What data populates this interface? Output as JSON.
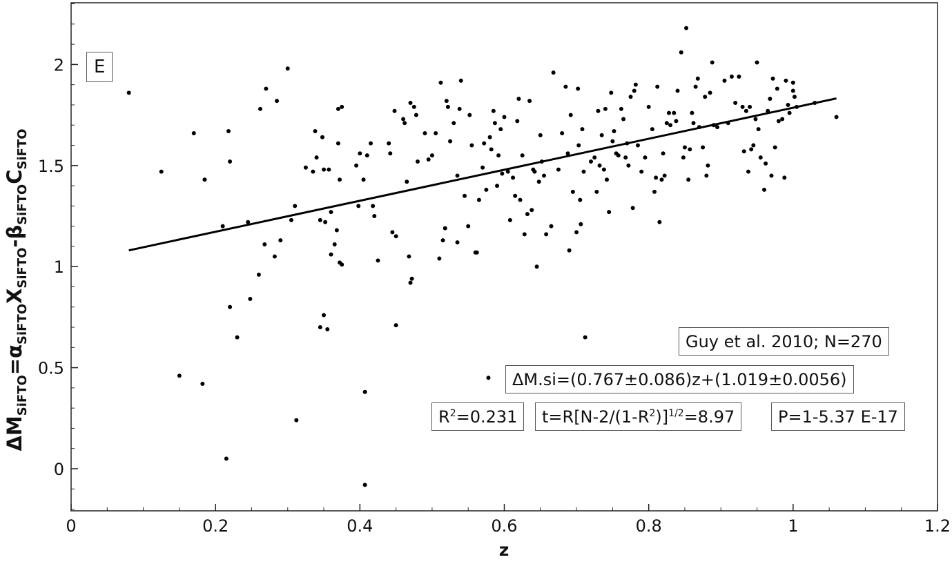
{
  "panel_label": "E",
  "legend": {
    "source": "Guy et al. 2010; N=270",
    "fit": "ΔM.si=(0.767±0.086)z+(1.019±0.0056)",
    "r2_prefix": "R",
    "r2_sup": "2",
    "r2_value": "=0.231",
    "t_a": "t=R[N-2/(1-R",
    "t_b": "2",
    "t_c": ")]",
    "t_d": "1/2",
    "t_e": "=8.97",
    "p": "P=1-5.37 E-17"
  },
  "chart_data": {
    "type": "scatter",
    "xlabel": "z",
    "ylabel": {
      "a": "ΔM",
      "a_sub": "SiFTO",
      "b": "=α",
      "b_sub": "SiFTO",
      "c": "X",
      "c_sub": "SiFTO",
      "d": "-β",
      "d_sub": "SiFTO",
      "e": "C",
      "e_sub": "SiFTO"
    },
    "xlim": [
      0,
      1.2
    ],
    "ylim": [
      -0.2,
      2.3
    ],
    "xticks": [
      0,
      0.2,
      0.4,
      0.6,
      0.8,
      1,
      1.2
    ],
    "yticks": [
      0,
      0.5,
      1,
      1.5,
      2
    ],
    "xtick_labels": [
      "0",
      "0.2",
      "0.4",
      "0.6",
      "0.8",
      "1",
      "1.2"
    ],
    "ytick_labels": [
      "0",
      "0.5",
      "1",
      "1.5",
      "2"
    ],
    "fit_line": {
      "slope": 0.767,
      "intercept": 1.019,
      "x_range": [
        0.08,
        1.06
      ]
    },
    "points": [
      [
        0.08,
        1.86
      ],
      [
        0.125,
        1.47
      ],
      [
        0.15,
        0.46
      ],
      [
        0.17,
        1.66
      ],
      [
        0.182,
        0.42
      ],
      [
        0.185,
        1.43
      ],
      [
        0.21,
        1.2
      ],
      [
        0.215,
        0.05
      ],
      [
        0.218,
        1.67
      ],
      [
        0.22,
        1.52
      ],
      [
        0.22,
        0.8
      ],
      [
        0.23,
        0.65
      ],
      [
        0.245,
        1.22
      ],
      [
        0.248,
        0.84
      ],
      [
        0.26,
        0.96
      ],
      [
        0.262,
        1.78
      ],
      [
        0.268,
        1.11
      ],
      [
        0.27,
        1.88
      ],
      [
        0.282,
        1.05
      ],
      [
        0.285,
        1.82
      ],
      [
        0.29,
        1.13
      ],
      [
        0.3,
        1.98
      ],
      [
        0.305,
        1.23
      ],
      [
        0.31,
        1.3
      ],
      [
        0.312,
        0.24
      ],
      [
        0.325,
        1.49
      ],
      [
        0.335,
        1.47
      ],
      [
        0.338,
        1.67
      ],
      [
        0.34,
        1.54
      ],
      [
        0.345,
        0.7
      ],
      [
        0.345,
        1.23
      ],
      [
        0.348,
        1.64
      ],
      [
        0.35,
        0.76
      ],
      [
        0.35,
        1.48
      ],
      [
        0.352,
        1.22
      ],
      [
        0.355,
        0.69
      ],
      [
        0.357,
        1.48
      ],
      [
        0.36,
        1.27
      ],
      [
        0.36,
        1.06
      ],
      [
        0.365,
        1.11
      ],
      [
        0.368,
        1.18
      ],
      [
        0.37,
        1.78
      ],
      [
        0.37,
        1.61
      ],
      [
        0.372,
        1.43
      ],
      [
        0.372,
        1.02
      ],
      [
        0.375,
        1.79
      ],
      [
        0.375,
        1.01
      ],
      [
        0.395,
        1.5
      ],
      [
        0.398,
        1.3
      ],
      [
        0.4,
        1.56
      ],
      [
        0.405,
        1.43
      ],
      [
        0.407,
        0.38
      ],
      [
        0.407,
        -0.08
      ],
      [
        0.41,
        1.55
      ],
      [
        0.415,
        1.61
      ],
      [
        0.418,
        1.3
      ],
      [
        0.42,
        1.25
      ],
      [
        0.425,
        1.03
      ],
      [
        0.44,
        1.61
      ],
      [
        0.442,
        1.56
      ],
      [
        0.445,
        1.17
      ],
      [
        0.448,
        1.77
      ],
      [
        0.45,
        1.15
      ],
      [
        0.45,
        0.71
      ],
      [
        0.46,
        1.73
      ],
      [
        0.462,
        1.71
      ],
      [
        0.465,
        1.42
      ],
      [
        0.468,
        1.05
      ],
      [
        0.47,
        1.81
      ],
      [
        0.47,
        0.92
      ],
      [
        0.472,
        0.94
      ],
      [
        0.475,
        1.79
      ],
      [
        0.478,
        1.75
      ],
      [
        0.48,
        1.52
      ],
      [
        0.49,
        1.66
      ],
      [
        0.495,
        1.53
      ],
      [
        0.5,
        1.55
      ],
      [
        0.505,
        1.66
      ],
      [
        0.51,
        1.04
      ],
      [
        0.512,
        1.91
      ],
      [
        0.515,
        1.13
      ],
      [
        0.518,
        1.19
      ],
      [
        0.52,
        1.82
      ],
      [
        0.522,
        1.79
      ],
      [
        0.525,
        1.62
      ],
      [
        0.53,
        1.71
      ],
      [
        0.535,
        1.45
      ],
      [
        0.535,
        1.12
      ],
      [
        0.538,
        1.78
      ],
      [
        0.54,
        1.92
      ],
      [
        0.545,
        1.35
      ],
      [
        0.55,
        1.2
      ],
      [
        0.552,
        1.75
      ],
      [
        0.555,
        1.6
      ],
      [
        0.56,
        1.07
      ],
      [
        0.562,
        1.07
      ],
      [
        0.565,
        1.33
      ],
      [
        0.57,
        1.49
      ],
      [
        0.572,
        1.61
      ],
      [
        0.575,
        1.38
      ],
      [
        0.578,
        0.45
      ],
      [
        0.58,
        1.64
      ],
      [
        0.582,
        1.58
      ],
      [
        0.585,
        1.77
      ],
      [
        0.587,
        1.71
      ],
      [
        0.59,
        1.4
      ],
      [
        0.592,
        1.55
      ],
      [
        0.595,
        1.68
      ],
      [
        0.597,
        1.46
      ],
      [
        0.6,
        1.74
      ],
      [
        0.605,
        1.47
      ],
      [
        0.608,
        1.23
      ],
      [
        0.612,
        1.44
      ],
      [
        0.615,
        1.35
      ],
      [
        0.618,
        1.72
      ],
      [
        0.62,
        1.83
      ],
      [
        0.622,
        1.33
      ],
      [
        0.625,
        1.55
      ],
      [
        0.628,
        1.16
      ],
      [
        0.632,
        1.26
      ],
      [
        0.635,
        1.82
      ],
      [
        0.638,
        1.28
      ],
      [
        0.64,
        1.48
      ],
      [
        0.642,
        1.47
      ],
      [
        0.645,
        1.0
      ],
      [
        0.648,
        1.42
      ],
      [
        0.65,
        1.65
      ],
      [
        0.652,
        1.52
      ],
      [
        0.655,
        1.45
      ],
      [
        0.658,
        1.16
      ],
      [
        0.665,
        1.2
      ],
      [
        0.668,
        1.96
      ],
      [
        0.675,
        1.48
      ],
      [
        0.68,
        1.66
      ],
      [
        0.685,
        1.89
      ],
      [
        0.688,
        1.56
      ],
      [
        0.69,
        1.08
      ],
      [
        0.692,
        1.75
      ],
      [
        0.695,
        1.37
      ],
      [
        0.7,
        1.17
      ],
      [
        0.702,
        1.88
      ],
      [
        0.703,
        1.6
      ],
      [
        0.705,
        1.33
      ],
      [
        0.706,
        1.21
      ],
      [
        0.708,
        1.68
      ],
      [
        0.71,
        1.47
      ],
      [
        0.712,
        0.65
      ],
      [
        0.72,
        1.52
      ],
      [
        0.725,
        1.54
      ],
      [
        0.728,
        1.37
      ],
      [
        0.73,
        1.77
      ],
      [
        0.732,
        1.5
      ],
      [
        0.735,
        1.65
      ],
      [
        0.738,
        1.48
      ],
      [
        0.74,
        1.78
      ],
      [
        0.742,
        1.43
      ],
      [
        0.745,
        1.27
      ],
      [
        0.748,
        1.86
      ],
      [
        0.75,
        1.62
      ],
      [
        0.752,
        1.67
      ],
      [
        0.755,
        1.56
      ],
      [
        0.758,
        1.55
      ],
      [
        0.762,
        1.78
      ],
      [
        0.765,
        1.73
      ],
      [
        0.768,
        1.54
      ],
      [
        0.77,
        1.61
      ],
      [
        0.772,
        1.5
      ],
      [
        0.775,
        1.84
      ],
      [
        0.778,
        1.29
      ],
      [
        0.78,
        1.87
      ],
      [
        0.782,
        1.9
      ],
      [
        0.785,
        1.6
      ],
      [
        0.79,
        1.47
      ],
      [
        0.795,
        1.54
      ],
      [
        0.8,
        1.79
      ],
      [
        0.805,
        1.68
      ],
      [
        0.808,
        1.37
      ],
      [
        0.81,
        1.44
      ],
      [
        0.812,
        1.89
      ],
      [
        0.815,
        1.22
      ],
      [
        0.818,
        1.43
      ],
      [
        0.82,
        1.56
      ],
      [
        0.822,
        1.45
      ],
      [
        0.825,
        1.71
      ],
      [
        0.828,
        1.76
      ],
      [
        0.83,
        1.7
      ],
      [
        0.835,
        1.76
      ],
      [
        0.838,
        1.72
      ],
      [
        0.84,
        1.87
      ],
      [
        0.845,
        2.06
      ],
      [
        0.848,
        1.54
      ],
      [
        0.85,
        1.59
      ],
      [
        0.852,
        2.18
      ],
      [
        0.855,
        1.43
      ],
      [
        0.857,
        1.58
      ],
      [
        0.86,
        1.76
      ],
      [
        0.862,
        1.71
      ],
      [
        0.865,
        1.89
      ],
      [
        0.868,
        1.93
      ],
      [
        0.87,
        1.69
      ],
      [
        0.875,
        1.59
      ],
      [
        0.878,
        1.84
      ],
      [
        0.88,
        1.45
      ],
      [
        0.882,
        1.5
      ],
      [
        0.885,
        1.86
      ],
      [
        0.888,
        2.01
      ],
      [
        0.89,
        1.7
      ],
      [
        0.895,
        1.69
      ],
      [
        0.905,
        1.92
      ],
      [
        0.91,
        1.71
      ],
      [
        0.915,
        1.94
      ],
      [
        0.92,
        1.81
      ],
      [
        0.925,
        1.94
      ],
      [
        0.93,
        1.79
      ],
      [
        0.932,
        1.57
      ],
      [
        0.935,
        1.77
      ],
      [
        0.938,
        1.47
      ],
      [
        0.94,
        1.79
      ],
      [
        0.942,
        1.58
      ],
      [
        0.945,
        1.6
      ],
      [
        0.948,
        1.73
      ],
      [
        0.95,
        2.01
      ],
      [
        0.952,
        1.68
      ],
      [
        0.955,
        1.54
      ],
      [
        0.96,
        1.38
      ],
      [
        0.962,
        1.51
      ],
      [
        0.965,
        1.77
      ],
      [
        0.968,
        1.83
      ],
      [
        0.97,
        1.45
      ],
      [
        0.972,
        1.93
      ],
      [
        0.975,
        1.59
      ],
      [
        0.978,
        1.88
      ],
      [
        0.98,
        1.72
      ],
      [
        0.985,
        1.73
      ],
      [
        0.988,
        1.44
      ],
      [
        0.99,
        1.92
      ],
      [
        0.993,
        1.8
      ],
      [
        0.995,
        1.76
      ],
      [
        1.0,
        1.91
      ],
      [
        1.0,
        1.87
      ],
      [
        1.002,
        1.84
      ],
      [
        1.005,
        1.79
      ],
      [
        1.03,
        1.81
      ],
      [
        1.06,
        1.74
      ]
    ]
  }
}
